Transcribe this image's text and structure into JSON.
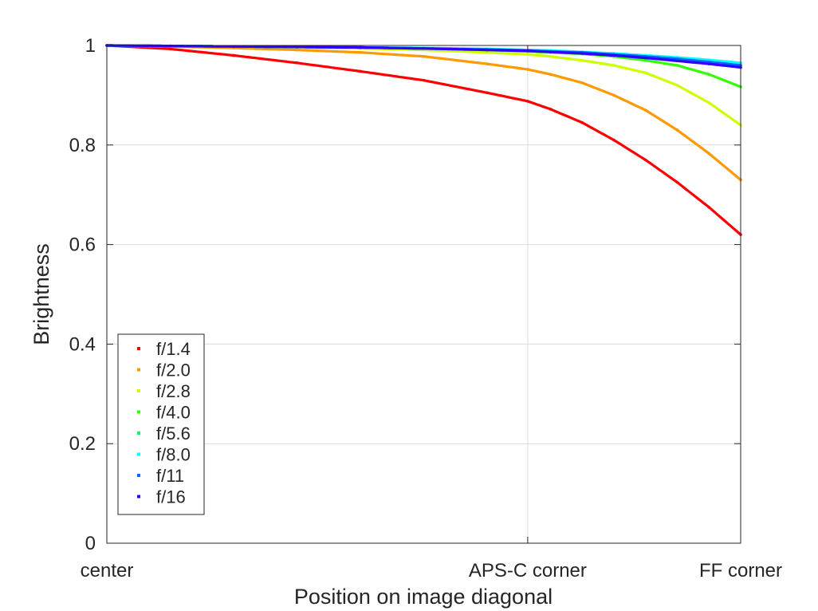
{
  "chart_data": {
    "type": "line",
    "xlabel": "Position on image diagonal",
    "ylabel": "Brightness",
    "xlim": [
      0,
      1
    ],
    "ylim": [
      0,
      1
    ],
    "x_ticks": [
      {
        "value": 0,
        "label": "center"
      },
      {
        "value": 0.664,
        "label": "APS-C corner"
      },
      {
        "value": 1,
        "label": "FF corner"
      }
    ],
    "y_ticks": [
      {
        "value": 0,
        "label": "0"
      },
      {
        "value": 0.2,
        "label": "0.2"
      },
      {
        "value": 0.4,
        "label": "0.4"
      },
      {
        "value": 0.6,
        "label": "0.6"
      },
      {
        "value": 0.8,
        "label": "0.8"
      },
      {
        "value": 1,
        "label": "1"
      }
    ],
    "grid": true,
    "legend_position": "bottom-left",
    "x": [
      0,
      0.1,
      0.2,
      0.3,
      0.4,
      0.5,
      0.6,
      0.664,
      0.7,
      0.75,
      0.8,
      0.85,
      0.9,
      0.95,
      1.0
    ],
    "series": [
      {
        "name": "f/1.4",
        "color": "#ff0000",
        "values": [
          1.0,
          0.993,
          0.98,
          0.965,
          0.948,
          0.93,
          0.905,
          0.888,
          0.872,
          0.845,
          0.81,
          0.77,
          0.725,
          0.675,
          0.62
        ]
      },
      {
        "name": "f/2.0",
        "color": "#ff9900",
        "values": [
          1.0,
          0.998,
          0.995,
          0.991,
          0.986,
          0.978,
          0.963,
          0.952,
          0.942,
          0.925,
          0.9,
          0.87,
          0.83,
          0.783,
          0.73
        ]
      },
      {
        "name": "f/2.8",
        "color": "#ccff00",
        "values": [
          1.0,
          0.999,
          0.998,
          0.996,
          0.994,
          0.991,
          0.986,
          0.982,
          0.978,
          0.97,
          0.96,
          0.945,
          0.92,
          0.885,
          0.84
        ]
      },
      {
        "name": "f/4.0",
        "color": "#33ff00",
        "values": [
          1.0,
          0.999,
          0.998,
          0.997,
          0.996,
          0.994,
          0.991,
          0.988,
          0.986,
          0.983,
          0.978,
          0.97,
          0.96,
          0.942,
          0.917
        ]
      },
      {
        "name": "f/5.6",
        "color": "#00ff66",
        "values": [
          1.0,
          0.999,
          0.998,
          0.997,
          0.996,
          0.994,
          0.992,
          0.99,
          0.988,
          0.985,
          0.982,
          0.978,
          0.973,
          0.967,
          0.96
        ]
      },
      {
        "name": "f/8.0",
        "color": "#00ffff",
        "values": [
          1.0,
          0.999,
          0.998,
          0.997,
          0.996,
          0.995,
          0.993,
          0.991,
          0.99,
          0.987,
          0.984,
          0.98,
          0.976,
          0.971,
          0.965
        ]
      },
      {
        "name": "f/11",
        "color": "#0066ff",
        "values": [
          1.0,
          0.999,
          0.998,
          0.997,
          0.996,
          0.994,
          0.992,
          0.99,
          0.988,
          0.986,
          0.982,
          0.978,
          0.973,
          0.967,
          0.96
        ]
      },
      {
        "name": "f/16",
        "color": "#3300ff",
        "values": [
          1.0,
          0.999,
          0.998,
          0.997,
          0.996,
          0.994,
          0.991,
          0.989,
          0.987,
          0.984,
          0.98,
          0.975,
          0.969,
          0.963,
          0.956
        ]
      }
    ]
  }
}
